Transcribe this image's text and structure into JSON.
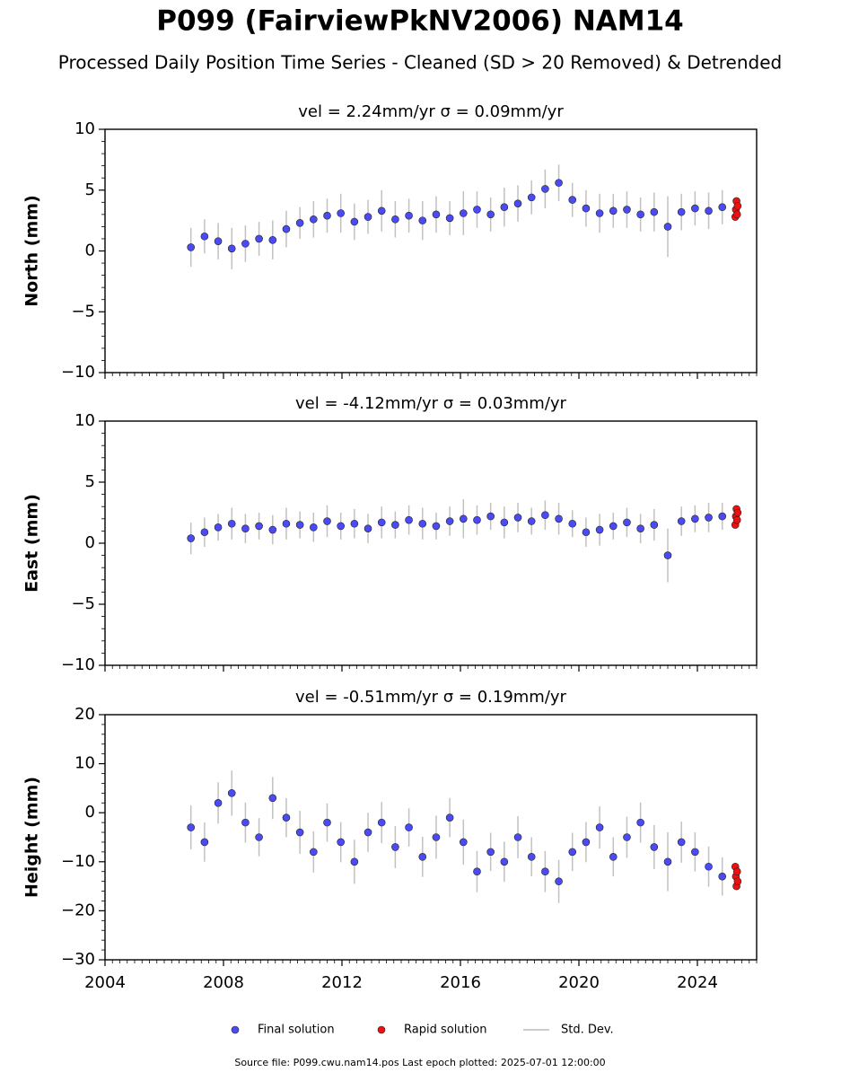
{
  "header": {
    "title": "P099 (FairviewPkNV2006) NAM14",
    "subtitle": "Processed Daily Position Time Series - Cleaned (SD > 20 Removed) & Detrended"
  },
  "footer": "Source file: P099.cwu.nam14.pos  Last epoch plotted: 2025-07-01 12:00:00",
  "chart_data": [
    {
      "type": "scatter",
      "title": "vel = 2.24mm/yr   σ = 0.09mm/yr",
      "y_label": "North (mm)",
      "error_name": "Std. Dev.",
      "error_color": "#bbbbbb",
      "xlim": [
        2004,
        2026
      ],
      "xticks": [
        2004,
        2008,
        2012,
        2016,
        2020,
        2024
      ],
      "show_xtick_labels": false,
      "ylim": [
        -10,
        10
      ],
      "yticks": [
        {
          "value": 10,
          "label": "10"
        },
        {
          "value": 5,
          "label": "5"
        },
        {
          "value": 0,
          "label": "0"
        },
        {
          "value": -5,
          "label": "−5"
        },
        {
          "value": -10,
          "label": "−10"
        }
      ],
      "series": [
        {
          "name": "Final solution",
          "color": "#4b4bf5",
          "x": [
            2006.9,
            2007.36,
            2007.82,
            2008.28,
            2008.74,
            2009.2,
            2009.66,
            2010.12,
            2010.58,
            2011.04,
            2011.5,
            2011.96,
            2012.42,
            2012.88,
            2013.34,
            2013.8,
            2014.26,
            2014.72,
            2015.18,
            2015.64,
            2016.1,
            2016.56,
            2017.02,
            2017.48,
            2017.94,
            2018.4,
            2018.86,
            2019.32,
            2019.78,
            2020.24,
            2020.7,
            2021.16,
            2021.62,
            2022.08,
            2022.54,
            2023.0,
            2023.46,
            2023.92,
            2024.38,
            2024.84
          ],
          "values": [
            0.3,
            1.2,
            0.8,
            0.2,
            0.6,
            1.0,
            0.9,
            1.8,
            2.3,
            2.6,
            2.9,
            3.1,
            2.4,
            2.8,
            3.3,
            2.6,
            2.9,
            2.5,
            3.0,
            2.7,
            3.1,
            3.4,
            3.0,
            3.6,
            3.9,
            4.4,
            5.1,
            5.6,
            4.2,
            3.5,
            3.1,
            3.3,
            3.4,
            3.0,
            3.2,
            2.0,
            3.2,
            3.5,
            3.3,
            3.6
          ],
          "errors": [
            1.6,
            1.4,
            1.5,
            1.7,
            1.5,
            1.4,
            1.6,
            1.5,
            1.3,
            1.5,
            1.4,
            1.6,
            1.5,
            1.4,
            1.7,
            1.5,
            1.4,
            1.6,
            1.5,
            1.4,
            1.8,
            1.5,
            1.4,
            1.6,
            1.5,
            1.4,
            1.6,
            1.5,
            1.4,
            1.5,
            1.6,
            1.4,
            1.5,
            1.4,
            1.6,
            2.5,
            1.5,
            1.4,
            1.5,
            1.4
          ]
        },
        {
          "name": "Rapid solution",
          "color": "#ee1111",
          "x": [
            2025.28,
            2025.3,
            2025.32,
            2025.34,
            2025.36
          ],
          "values": [
            2.8,
            3.4,
            4.1,
            3.0,
            3.7
          ]
        }
      ]
    },
    {
      "type": "scatter",
      "title": "vel = -4.12mm/yr   σ = 0.03mm/yr",
      "y_label": "East (mm)",
      "xlim": [
        2004,
        2026
      ],
      "xticks": [
        2004,
        2008,
        2012,
        2016,
        2020,
        2024
      ],
      "show_xtick_labels": false,
      "ylim": [
        -10,
        10
      ],
      "yticks": [
        {
          "value": 10,
          "label": "10"
        },
        {
          "value": 5,
          "label": "5"
        },
        {
          "value": 0,
          "label": "0"
        },
        {
          "value": -5,
          "label": "−5"
        },
        {
          "value": -10,
          "label": "−10"
        }
      ],
      "series": [
        {
          "name": "Final solution",
          "color": "#4b4bf5",
          "x": [
            2006.9,
            2007.36,
            2007.82,
            2008.28,
            2008.74,
            2009.2,
            2009.66,
            2010.12,
            2010.58,
            2011.04,
            2011.5,
            2011.96,
            2012.42,
            2012.88,
            2013.34,
            2013.8,
            2014.26,
            2014.72,
            2015.18,
            2015.64,
            2016.1,
            2016.56,
            2017.02,
            2017.48,
            2017.94,
            2018.4,
            2018.86,
            2019.32,
            2019.78,
            2020.24,
            2020.7,
            2021.16,
            2021.62,
            2022.08,
            2022.54,
            2023.0,
            2023.46,
            2023.92,
            2024.38,
            2024.84
          ],
          "values": [
            0.4,
            0.9,
            1.3,
            1.6,
            1.2,
            1.4,
            1.1,
            1.6,
            1.5,
            1.3,
            1.8,
            1.4,
            1.6,
            1.2,
            1.7,
            1.5,
            1.9,
            1.6,
            1.4,
            1.8,
            2.0,
            1.9,
            2.2,
            1.7,
            2.1,
            1.8,
            2.3,
            2.0,
            1.6,
            0.9,
            1.1,
            1.4,
            1.7,
            1.2,
            1.5,
            -1.0,
            1.8,
            2.0,
            2.1,
            2.2
          ],
          "errors": [
            1.3,
            1.2,
            1.1,
            1.3,
            1.2,
            1.1,
            1.2,
            1.3,
            1.1,
            1.2,
            1.3,
            1.1,
            1.2,
            1.2,
            1.3,
            1.1,
            1.2,
            1.3,
            1.1,
            1.2,
            1.6,
            1.2,
            1.1,
            1.3,
            1.2,
            1.1,
            1.2,
            1.3,
            1.1,
            1.2,
            1.3,
            1.1,
            1.2,
            1.2,
            1.3,
            2.2,
            1.2,
            1.1,
            1.2,
            1.1
          ]
        },
        {
          "name": "Rapid solution",
          "color": "#ee1111",
          "x": [
            2025.28,
            2025.3,
            2025.32,
            2025.34,
            2025.36
          ],
          "values": [
            1.5,
            2.2,
            2.8,
            1.9,
            2.5
          ]
        }
      ]
    },
    {
      "type": "scatter",
      "title": "vel = -0.51mm/yr   σ = 0.19mm/yr",
      "y_label": "Height (mm)",
      "xlim": [
        2004,
        2026
      ],
      "xticks": [
        2004,
        2008,
        2012,
        2016,
        2020,
        2024
      ],
      "show_xtick_labels": true,
      "ylim": [
        -30,
        20
      ],
      "yticks": [
        {
          "value": 20,
          "label": "20"
        },
        {
          "value": 10,
          "label": "10"
        },
        {
          "value": 0,
          "label": "0"
        },
        {
          "value": -10,
          "label": "−10"
        },
        {
          "value": -20,
          "label": "−20"
        },
        {
          "value": -30,
          "label": "−30"
        }
      ],
      "series": [
        {
          "name": "Final solution",
          "color": "#4b4bf5",
          "x": [
            2006.9,
            2007.36,
            2007.82,
            2008.28,
            2008.74,
            2009.2,
            2009.66,
            2010.12,
            2010.58,
            2011.04,
            2011.5,
            2011.96,
            2012.42,
            2012.88,
            2013.34,
            2013.8,
            2014.26,
            2014.72,
            2015.18,
            2015.64,
            2016.1,
            2016.56,
            2017.02,
            2017.48,
            2017.94,
            2018.4,
            2018.86,
            2019.32,
            2019.78,
            2020.24,
            2020.7,
            2021.16,
            2021.62,
            2022.08,
            2022.54,
            2023.0,
            2023.46,
            2023.92,
            2024.38,
            2024.84
          ],
          "values": [
            -3,
            -6,
            2,
            4,
            -2,
            -5,
            3,
            -1,
            -4,
            -8,
            -2,
            -6,
            -10,
            -4,
            -2,
            -7,
            -3,
            -9,
            -5,
            -1,
            -6,
            -12,
            -8,
            -10,
            -5,
            -9,
            -12,
            -14,
            -8,
            -6,
            -3,
            -9,
            -5,
            -2,
            -7,
            -10,
            -6,
            -8,
            -11,
            -13
          ],
          "errors": [
            4.5,
            4.0,
            4.2,
            4.6,
            4.1,
            3.9,
            4.3,
            4.0,
            4.4,
            4.2,
            3.9,
            4.1,
            4.5,
            4.0,
            4.2,
            4.3,
            3.9,
            4.1,
            4.4,
            4.0,
            4.6,
            4.2,
            3.9,
            4.1,
            4.3,
            4.0,
            4.2,
            4.4,
            3.9,
            4.1,
            4.3,
            4.0,
            4.2,
            4.1,
            4.5,
            6.0,
            4.2,
            4.0,
            4.1,
            3.9
          ]
        },
        {
          "name": "Rapid solution",
          "color": "#ee1111",
          "x": [
            2025.28,
            2025.3,
            2025.32,
            2025.34,
            2025.36
          ],
          "values": [
            -11,
            -13,
            -15,
            -12,
            -14
          ]
        }
      ]
    }
  ]
}
